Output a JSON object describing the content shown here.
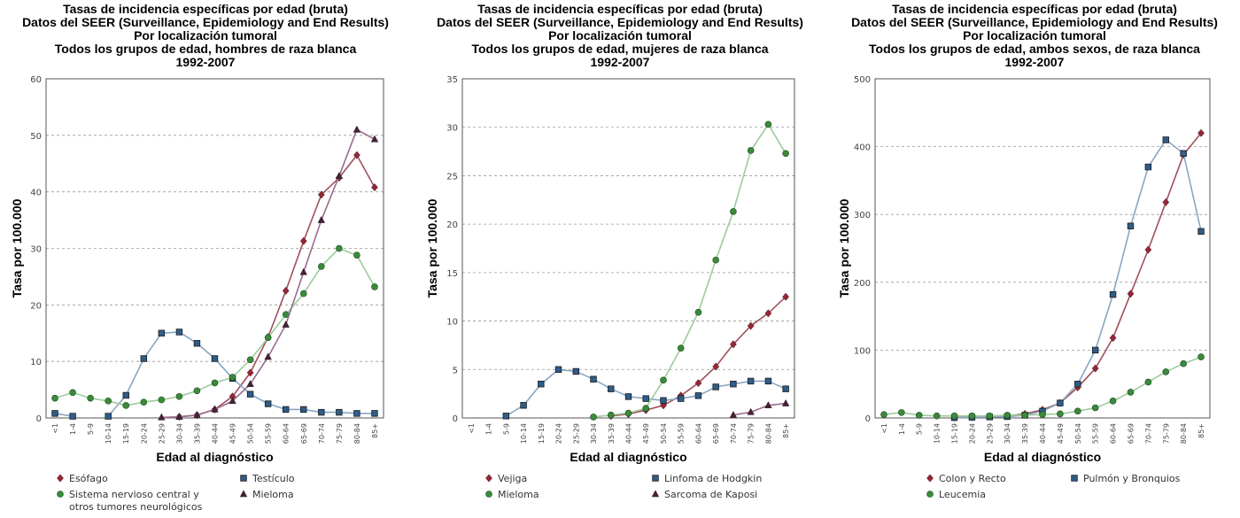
{
  "chart_data": [
    {
      "type": "line",
      "title_lines": [
        "Tasas de incidencia específicas por edad (bruta)",
        "Datos del SEER (Surveillance, Epidemiology and End Results)",
        "Por localización tumoral",
        "Todos los grupos de edad, hombres de raza blanca",
        "1992-2007"
      ],
      "xlabel": "Edad al diagnóstico",
      "ylabel": "Tasa por 100.000",
      "ylim": [
        0,
        60
      ],
      "yticks": [
        "0",
        "10",
        "20",
        "30",
        "40",
        "50",
        "60"
      ],
      "categories": [
        "<1",
        "1-4",
        "5-9",
        "10-14",
        "15-19",
        "20-24",
        "25-29",
        "30-34",
        "35-39",
        "40-44",
        "45-49",
        "50-54",
        "55-59",
        "60-64",
        "65-69",
        "70-74",
        "75-79",
        "80-84",
        "85+"
      ],
      "grid": "horizontal-dashed",
      "series": [
        {
          "name": "Esófago",
          "color": "#9b2335",
          "marker": "diamond",
          "values": [
            null,
            null,
            null,
            null,
            null,
            null,
            null,
            0.2,
            0.5,
            1.5,
            3.8,
            8.0,
            14.3,
            22.5,
            31.3,
            39.5,
            42.5,
            46.5,
            40.8
          ]
        },
        {
          "name": "Testículo",
          "color": "#2f5d8a",
          "marker": "square",
          "values": [
            0.8,
            0.3,
            null,
            0.3,
            4.0,
            10.5,
            15.0,
            15.2,
            13.2,
            10.5,
            7.0,
            4.2,
            2.5,
            1.5,
            1.5,
            1.0,
            1.0,
            0.8,
            0.8
          ]
        },
        {
          "name": "Sistema nervioso central y otros tumores neurológicos",
          "color": "#3b8a3b",
          "marker": "circle",
          "values": [
            3.5,
            4.5,
            3.5,
            3.0,
            2.2,
            2.8,
            3.2,
            3.8,
            4.8,
            6.2,
            7.2,
            10.3,
            14.2,
            18.3,
            22.0,
            26.8,
            30.0,
            28.8,
            23.2
          ]
        },
        {
          "name": "Mieloma",
          "color": "#4a1e3a",
          "marker": "triangle",
          "values": [
            null,
            null,
            null,
            null,
            null,
            null,
            0.1,
            0.2,
            0.5,
            1.5,
            3.0,
            6.0,
            10.8,
            16.5,
            25.8,
            35.0,
            42.8,
            51.0,
            49.3
          ]
        }
      ],
      "legend": {
        "placement": "bottom",
        "columns": [
          [
            "Esófago",
            "Sistema nervioso central y|otros tumores neurológicos"
          ],
          [
            "Testículo",
            "Mieloma"
          ]
        ]
      }
    },
    {
      "type": "line",
      "title_lines": [
        "Tasas de incidencia específicas por edad (bruta)",
        "Datos del SEER (Surveillance, Epidemiology and End Results)",
        "Por localización tumoral",
        "Todos los grupos de edad, mujeres de raza blanca",
        "1992-2007"
      ],
      "xlabel": "Edad al diagnóstico",
      "ylabel": "Tasa por 100.000",
      "ylim": [
        0,
        35
      ],
      "yticks": [
        "0",
        "5",
        "10",
        "15",
        "20",
        "25",
        "30",
        "35"
      ],
      "categories": [
        "<1",
        "1-4",
        "5-9",
        "10-14",
        "15-19",
        "20-24",
        "25-29",
        "30-34",
        "35-39",
        "40-44",
        "45-49",
        "50-54",
        "55-59",
        "60-64",
        "65-69",
        "70-74",
        "75-79",
        "80-84",
        "85+"
      ],
      "grid": "horizontal-dashed",
      "series": [
        {
          "name": "Vejiga",
          "color": "#9b2335",
          "marker": "diamond",
          "values": [
            null,
            null,
            null,
            null,
            null,
            null,
            null,
            null,
            0.2,
            0.4,
            0.8,
            1.3,
            2.3,
            3.6,
            5.3,
            7.6,
            9.5,
            10.8,
            12.5
          ]
        },
        {
          "name": "Linfoma de Hodgkin",
          "color": "#2f5d8a",
          "marker": "square",
          "values": [
            null,
            null,
            0.2,
            1.3,
            3.5,
            5.0,
            4.8,
            4.0,
            3.0,
            2.2,
            2.0,
            1.8,
            2.0,
            2.3,
            3.2,
            3.5,
            3.8,
            3.8,
            3.0
          ]
        },
        {
          "name": "Mieloma",
          "color": "#3b8a3b",
          "marker": "circle",
          "values": [
            null,
            null,
            null,
            null,
            null,
            null,
            null,
            0.1,
            0.3,
            0.5,
            1.0,
            3.9,
            7.2,
            10.9,
            16.3,
            21.3,
            27.6,
            30.3,
            27.3
          ]
        },
        {
          "name": "Sarcoma de Kaposi",
          "color": "#4a1e3a",
          "marker": "triangle",
          "values": [
            null,
            null,
            null,
            null,
            null,
            null,
            null,
            null,
            null,
            null,
            null,
            null,
            null,
            null,
            null,
            0.3,
            0.6,
            1.3,
            1.5
          ]
        }
      ],
      "legend": {
        "placement": "bottom",
        "columns": [
          [
            "Vejiga",
            "Mieloma"
          ],
          [
            "Linfoma de Hodgkin",
            "Sarcoma de Kaposi"
          ]
        ]
      }
    },
    {
      "type": "line",
      "title_lines": [
        "Tasas de incidencia específicas por edad (bruta)",
        "Datos del SEER (Surveillance, Epidemiology and End Results)",
        "Por localización tumoral",
        "Todos los grupos de edad, ambos sexos, de raza blanca",
        "1992-2007"
      ],
      "xlabel": "Edad al diagnóstico",
      "ylabel": "Tasa por 100.000",
      "ylim": [
        0,
        500
      ],
      "yticks": [
        "0",
        "100",
        "200",
        "300",
        "400",
        "500"
      ],
      "categories": [
        "<1",
        "1-4",
        "5-9",
        "10-14",
        "15-19",
        "20-24",
        "25-29",
        "30-34",
        "35-39",
        "40-44",
        "45-49",
        "50-54",
        "55-59",
        "60-64",
        "65-69",
        "70-74",
        "75-79",
        "80-84",
        "85+"
      ],
      "grid": "horizontal-dashed",
      "series": [
        {
          "name": "Colon y Recto",
          "color": "#9b2335",
          "marker": "diamond",
          "values": [
            null,
            null,
            null,
            null,
            0.5,
            1,
            2,
            3,
            6,
            12,
            22,
            45,
            73,
            118,
            183,
            248,
            318,
            388,
            420
          ]
        },
        {
          "name": "Pulmón y Bronquios",
          "color": "#2f5d8a",
          "marker": "square",
          "values": [
            null,
            null,
            null,
            null,
            0.5,
            1,
            1.5,
            2,
            4,
            10,
            22,
            50,
            100,
            182,
            283,
            370,
            410,
            390,
            275
          ]
        },
        {
          "name": "Leucemia",
          "color": "#3b8a3b",
          "marker": "circle",
          "values": [
            5,
            8,
            4,
            3,
            3,
            3,
            3,
            4,
            4,
            5,
            6,
            10,
            15,
            25,
            38,
            53,
            68,
            80,
            90
          ]
        }
      ],
      "legend": {
        "placement": "bottom",
        "columns": [
          [
            "Colon y Recto",
            "Leucemia"
          ],
          [
            "Pulmón y Bronquios"
          ]
        ]
      }
    }
  ]
}
